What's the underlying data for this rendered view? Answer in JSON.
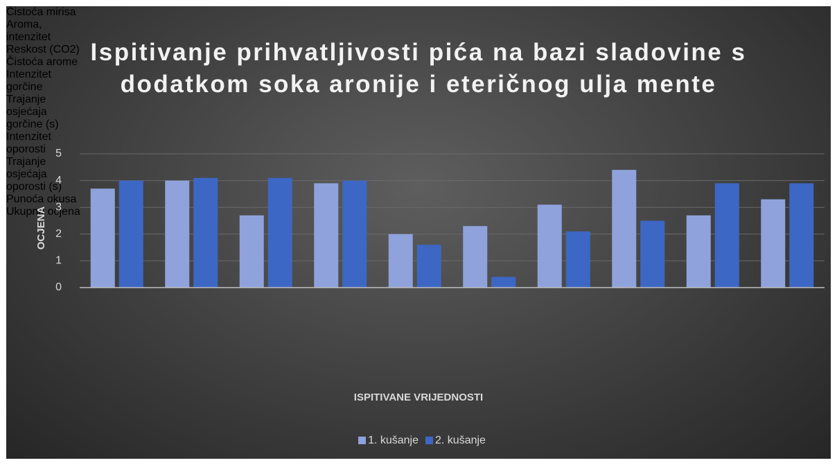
{
  "chart_data": {
    "type": "bar",
    "title": "Ispitivanje prihvatljivosti pića na bazi sladovine s dodatkom soka aronije i eteričnog ulja mente",
    "x_label": "ISPITIVANE VRIJEDNOSTI",
    "y_label": "OCJENA",
    "categories": [
      "Čistoća mirisa",
      "Aroma, intenzitet",
      "Reskost (CO2)",
      "Čistoća arome",
      "Intenzitet gorčine",
      "Trajanje osjećaja gorčine (s)",
      "Intenzitet oporosti",
      "Trajanje osjećaja oporosti (s)",
      "Punoća okusa",
      "Ukupna ocjena"
    ],
    "series": [
      {
        "name": "1. kušanje",
        "color": "#8fa2dc",
        "values": [
          3.7,
          4.0,
          2.7,
          3.9,
          2.0,
          2.3,
          3.1,
          4.4,
          2.7,
          3.3
        ]
      },
      {
        "name": "2. kušanje",
        "color": "#3d67c4",
        "values": [
          4.0,
          4.1,
          4.1,
          4.0,
          1.6,
          0.4,
          2.1,
          2.5,
          3.9,
          3.9
        ]
      }
    ],
    "ylim": [
      0,
      5
    ],
    "yticks": [
      0,
      1,
      2,
      3,
      4,
      5
    ],
    "grid": true,
    "legend": "bottom"
  }
}
